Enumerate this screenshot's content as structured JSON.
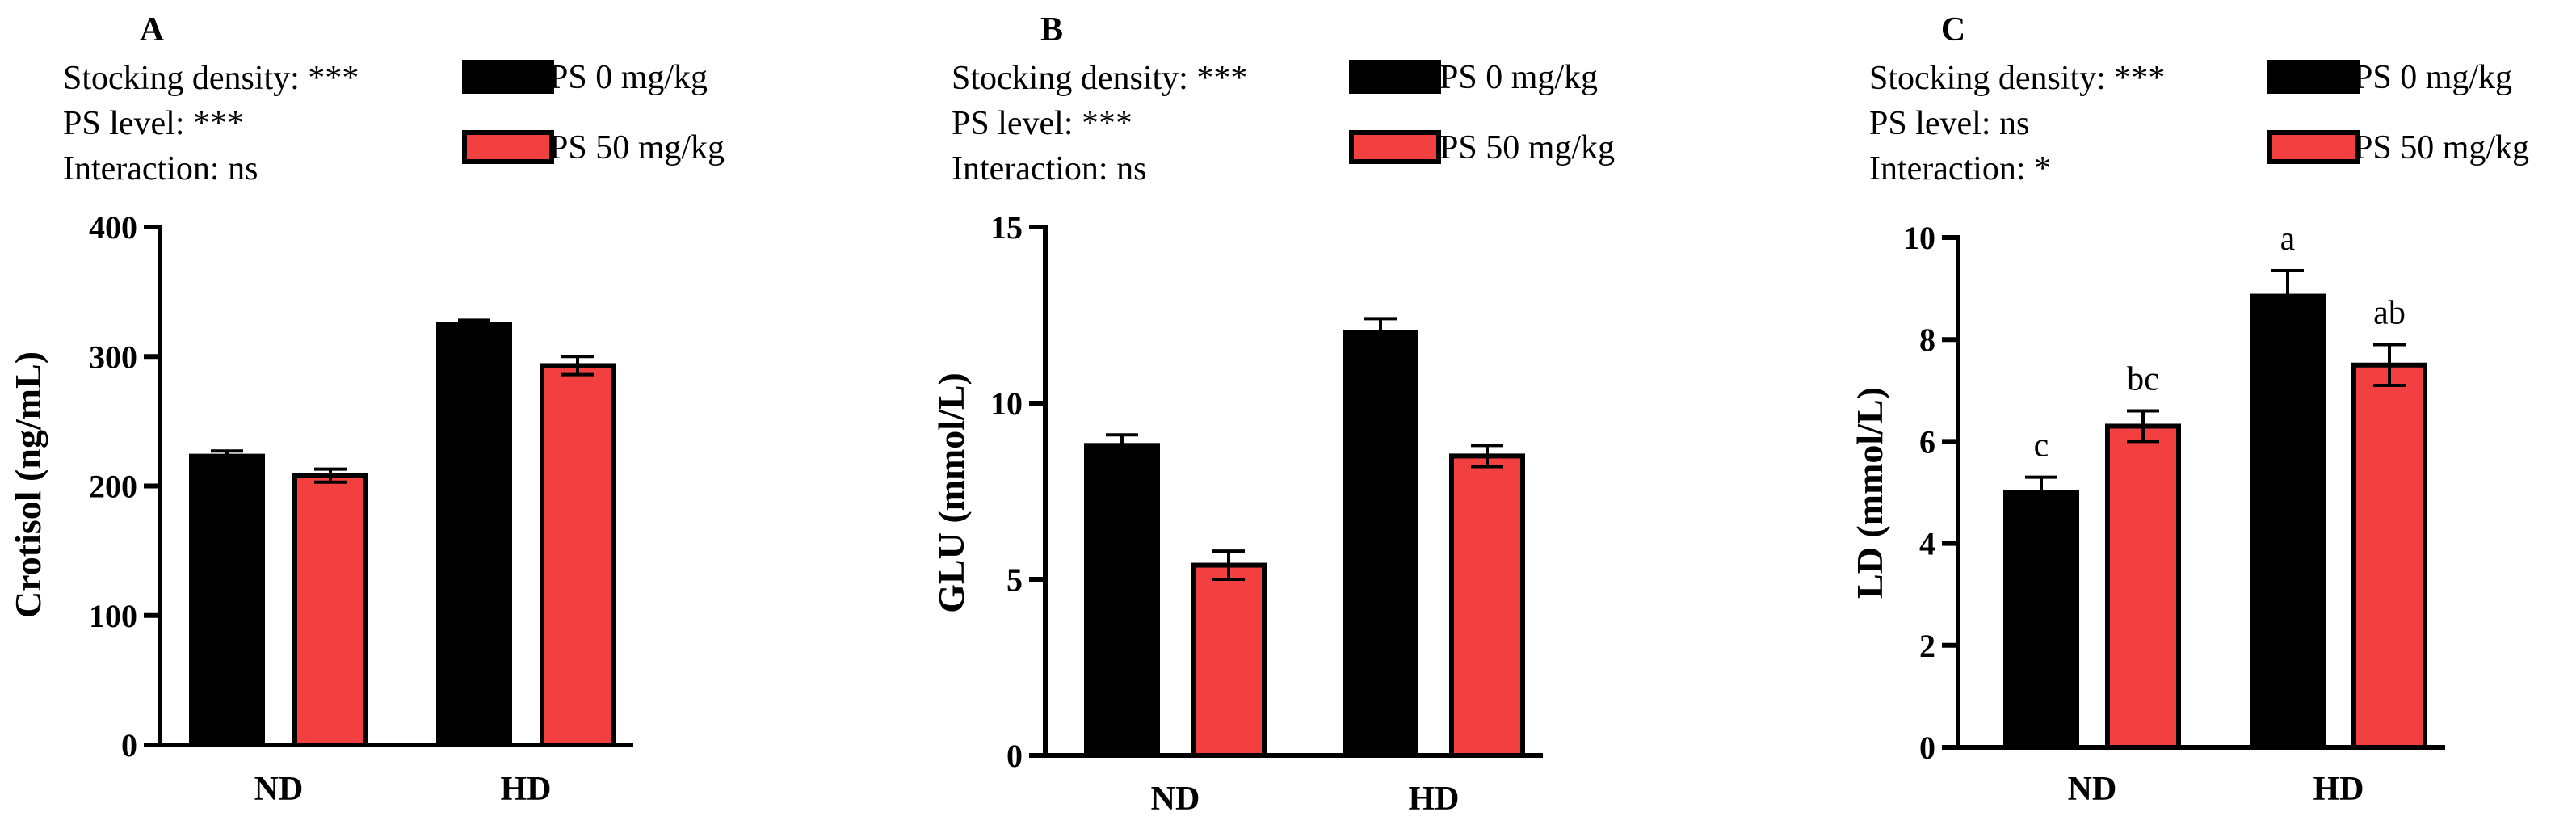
{
  "colors": {
    "ps0": "#000000",
    "ps50": "#f24040",
    "outline": "#000000"
  },
  "legend": [
    {
      "label": "PS 0 mg/kg",
      "color": "#000000"
    },
    {
      "label": "PS 50 mg/kg",
      "color": "#f24040"
    }
  ],
  "chart_data": [
    {
      "type": "bar",
      "panel": "A",
      "stats": [
        "Stocking density: ***",
        "PS level: ***",
        "Interaction: ns"
      ],
      "categories": [
        "ND",
        "HD"
      ],
      "series": [
        {
          "name": "PS 0 mg/kg",
          "values": [
            223,
            325
          ],
          "errors": [
            4,
            3
          ]
        },
        {
          "name": "PS 50 mg/kg",
          "values": [
            208,
            293
          ],
          "errors": [
            5,
            7
          ]
        }
      ],
      "ylabel": "Crotisol (ng/mL)",
      "ylim": [
        0,
        400
      ],
      "yticks": [
        0,
        100,
        200,
        300,
        400
      ],
      "letters": []
    },
    {
      "type": "bar",
      "panel": "B",
      "stats": [
        "Stocking density: ***",
        "PS level: ***",
        "Interaction: ns"
      ],
      "categories": [
        "ND",
        "HD"
      ],
      "series": [
        {
          "name": "PS 0 mg/kg",
          "values": [
            8.8,
            12.0
          ],
          "errors": [
            0.3,
            0.4
          ]
        },
        {
          "name": "PS 50 mg/kg",
          "values": [
            5.4,
            8.5
          ],
          "errors": [
            0.4,
            0.3
          ]
        }
      ],
      "ylabel": "GLU (mmol/L)",
      "ylim": [
        0,
        15
      ],
      "yticks": [
        0,
        5,
        10,
        15
      ],
      "letters": []
    },
    {
      "type": "bar",
      "panel": "C",
      "stats": [
        "Stocking density: ***",
        "PS level: ns",
        "Interaction: *"
      ],
      "categories": [
        "ND",
        "HD"
      ],
      "series": [
        {
          "name": "PS 0 mg/kg",
          "values": [
            5.0,
            8.85
          ],
          "errors": [
            0.3,
            0.5
          ]
        },
        {
          "name": "PS 50 mg/kg",
          "values": [
            6.3,
            7.5
          ],
          "errors": [
            0.3,
            0.4
          ]
        }
      ],
      "ylabel": "LD (mmol/L)",
      "ylim": [
        0,
        10
      ],
      "yticks": [
        0,
        2,
        4,
        6,
        8,
        10
      ],
      "letters": [
        [
          "c",
          "a"
        ],
        [
          "bc",
          "ab"
        ]
      ]
    }
  ]
}
